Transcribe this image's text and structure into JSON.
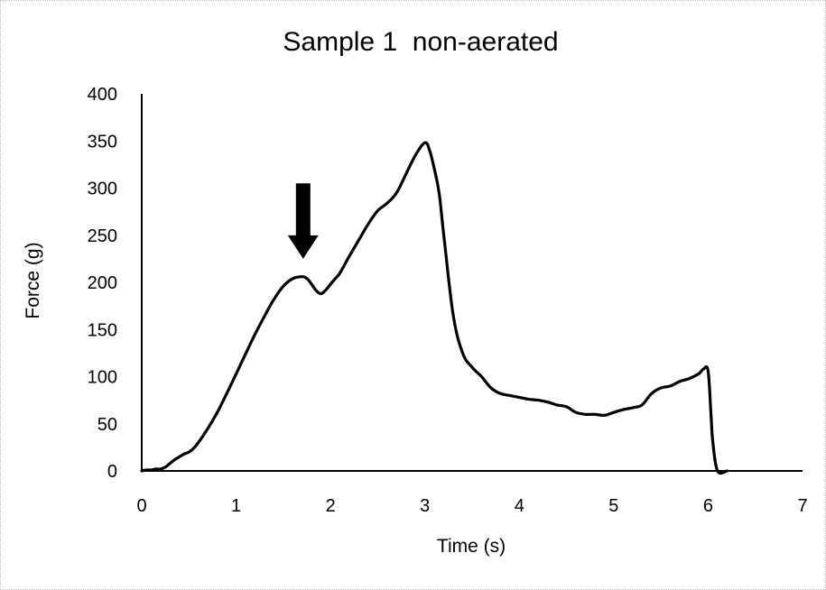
{
  "chart_data": {
    "type": "line",
    "title": "Sample 1  non-aerated",
    "xlabel": "Time (s)",
    "ylabel": "Force (g)",
    "xlim": [
      0,
      7
    ],
    "ylim": [
      0,
      400
    ],
    "xticks": [
      "0",
      "1",
      "2",
      "3",
      "4",
      "5",
      "6",
      "7"
    ],
    "yticks": [
      "0",
      "50",
      "100",
      "150",
      "200",
      "250",
      "300",
      "350",
      "400"
    ],
    "grid": false,
    "legend": "none",
    "line_color": "#000000",
    "annotation": {
      "type": "down-arrow",
      "x": 1.71,
      "y_from": 305,
      "y_to": 225
    },
    "series": [
      {
        "x": [
          0,
          0.05,
          0.1,
          0.15,
          0.2,
          0.25,
          0.3,
          0.35,
          0.4,
          0.45,
          0.5,
          0.55,
          0.6,
          0.7,
          0.8,
          0.9,
          1.0,
          1.1,
          1.2,
          1.3,
          1.4,
          1.5,
          1.6,
          1.7,
          1.75,
          1.8,
          1.85,
          1.9,
          1.95,
          2.0,
          2.05,
          2.1,
          2.2,
          2.3,
          2.4,
          2.5,
          2.6,
          2.7,
          2.8,
          2.9,
          3.0,
          3.05,
          3.1,
          3.15,
          3.2,
          3.3,
          3.4,
          3.5,
          3.6,
          3.7,
          3.8,
          3.9,
          4.0,
          4.1,
          4.2,
          4.3,
          4.4,
          4.5,
          4.6,
          4.7,
          4.75,
          4.8,
          4.9,
          5.0,
          5.1,
          5.2,
          5.3,
          5.4,
          5.5,
          5.6,
          5.7,
          5.8,
          5.9,
          5.95,
          6.0,
          6.03,
          6.05,
          6.1,
          6.2
        ],
        "y": [
          0,
          1,
          1,
          2,
          2,
          4,
          8,
          12,
          15,
          18,
          20,
          24,
          30,
          45,
          62,
          82,
          103,
          124,
          145,
          164,
          182,
          196,
          204,
          206,
          204,
          198,
          191,
          188,
          192,
          198,
          204,
          210,
          228,
          245,
          262,
          276,
          284,
          295,
          315,
          335,
          348,
          340,
          320,
          295,
          250,
          165,
          125,
          110,
          100,
          88,
          82,
          80,
          78,
          76,
          75,
          73,
          70,
          68,
          62,
          60,
          60,
          60,
          59,
          62,
          65,
          67,
          70,
          82,
          88,
          90,
          95,
          98,
          103,
          108,
          106,
          60,
          30,
          0,
          0
        ]
      }
    ]
  }
}
